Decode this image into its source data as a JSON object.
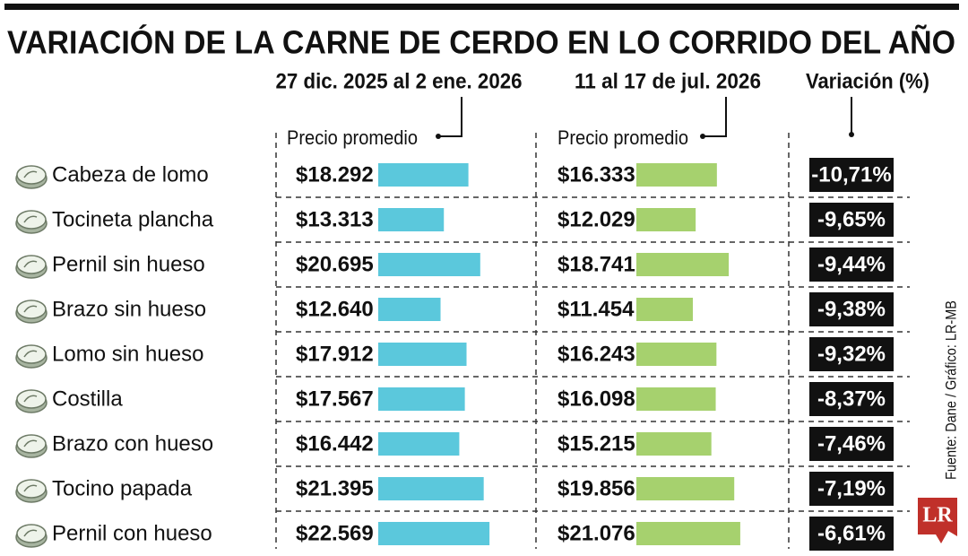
{
  "chart_data": {
    "type": "bar",
    "title": "VARIACIÓN DE LA CARNE DE CERDO EN LO CORRIDO DEL AÑO",
    "measure_label": "Precio promedio",
    "categories": [
      "Cabeza de lomo",
      "Tocineta plancha",
      "Pernil sin hueso",
      "Brazo sin hueso",
      "Lomo sin hueso",
      "Costilla",
      "Brazo con hueso",
      "Tocino papada",
      "Pernil con hueso"
    ],
    "series": [
      {
        "name": "27 dic. 2025 al 2 ene. 2026",
        "color": "#5bc8dc",
        "values": [
          18292,
          13313,
          20695,
          12640,
          17912,
          17567,
          16442,
          21395,
          22569
        ],
        "value_labels": [
          "$18.292",
          "$13.313",
          "$20.695",
          "$12.640",
          "$17.912",
          "$17.567",
          "$16.442",
          "$21.395",
          "$22.569"
        ]
      },
      {
        "name": "11 al 17 de jul. 2026",
        "color": "#a6d16e",
        "values": [
          16333,
          12029,
          18741,
          11454,
          16243,
          16098,
          15215,
          19856,
          21076
        ],
        "value_labels": [
          "$16.333",
          "$12.029",
          "$18.741",
          "$11.454",
          "$16.243",
          "$16.098",
          "$15.215",
          "$19.856",
          "$21.076"
        ]
      }
    ],
    "variation": {
      "name": "Variación (%)",
      "values": [
        -10.71,
        -9.65,
        -9.44,
        -9.38,
        -9.32,
        -8.37,
        -7.46,
        -7.19,
        -6.61
      ],
      "value_labels": [
        "-10,71%",
        "-9,65%",
        "-9,44%",
        "-9,38%",
        "-9,32%",
        "-8,37%",
        "-7,46%",
        "-7,19%",
        "-6,61%"
      ]
    },
    "source": "Fuente: Dane / Gráfico: LR-MB",
    "logo": "LR"
  }
}
